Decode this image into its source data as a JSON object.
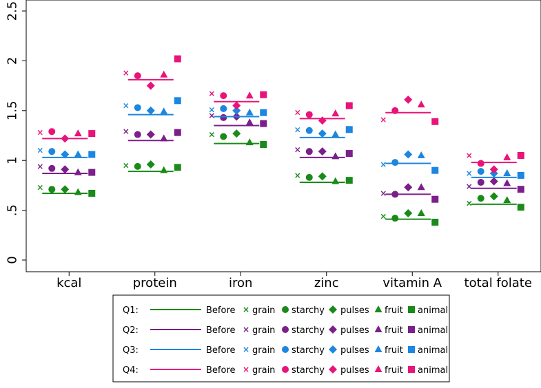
{
  "chart_data": {
    "type": "scatter",
    "title": "",
    "xlabel": "",
    "ylabel": "",
    "ylim": [
      0,
      2.5
    ],
    "yticks": [
      {
        "value": 0,
        "label": "0"
      },
      {
        "value": 0.5,
        "label": ".5"
      },
      {
        "value": 1,
        "label": "1"
      },
      {
        "value": 1.5,
        "label": "1.5"
      },
      {
        "value": 2,
        "label": "2"
      },
      {
        "value": 2.5,
        "label": "2.5"
      }
    ],
    "categories": [
      "kcal",
      "protein",
      "iron",
      "zinc",
      "vitamin A",
      "total folate"
    ],
    "marker_order": [
      "grain",
      "starchy",
      "pulses",
      "fruit",
      "animal"
    ],
    "quartiles": [
      {
        "name": "Q1",
        "color": "#1a8a1a",
        "before": [
          0.67,
          0.89,
          1.17,
          0.78,
          0.41,
          0.56
        ],
        "grain": [
          0.73,
          0.95,
          1.26,
          0.85,
          0.44,
          0.57
        ],
        "starchy": [
          0.71,
          0.94,
          1.24,
          0.83,
          0.42,
          0.62
        ],
        "pulses": [
          0.71,
          0.96,
          1.27,
          0.84,
          0.47,
          0.64
        ],
        "fruit": [
          0.68,
          0.9,
          1.18,
          0.79,
          0.47,
          0.6
        ],
        "animal": [
          0.67,
          0.93,
          1.16,
          0.8,
          0.38,
          0.53
        ]
      },
      {
        "name": "Q2",
        "color": "#7b1f8a",
        "before": [
          0.87,
          1.2,
          1.35,
          1.03,
          0.66,
          0.72
        ],
        "grain": [
          0.94,
          1.29,
          1.45,
          1.11,
          0.67,
          0.74
        ],
        "starchy": [
          0.92,
          1.26,
          1.43,
          1.09,
          0.66,
          0.78
        ],
        "pulses": [
          0.91,
          1.26,
          1.44,
          1.09,
          0.73,
          0.79
        ],
        "fruit": [
          0.88,
          1.22,
          1.38,
          1.04,
          0.73,
          0.77
        ],
        "animal": [
          0.88,
          1.28,
          1.37,
          1.07,
          0.61,
          0.71
        ]
      },
      {
        "name": "Q3",
        "color": "#1c86e0",
        "before": [
          1.03,
          1.46,
          1.44,
          1.23,
          0.97,
          0.83
        ],
        "grain": [
          1.1,
          1.55,
          1.51,
          1.31,
          0.96,
          0.87
        ],
        "starchy": [
          1.09,
          1.53,
          1.52,
          1.3,
          0.98,
          0.89
        ],
        "pulses": [
          1.06,
          1.5,
          1.5,
          1.27,
          1.06,
          0.87
        ],
        "fruit": [
          1.06,
          1.49,
          1.48,
          1.26,
          1.05,
          0.87
        ],
        "animal": [
          1.06,
          1.6,
          1.48,
          1.31,
          0.9,
          0.85
        ]
      },
      {
        "name": "Q4",
        "color": "#e8147a",
        "before": [
          1.22,
          1.81,
          1.59,
          1.42,
          1.48,
          0.98
        ],
        "grain": [
          1.28,
          1.88,
          1.67,
          1.48,
          1.41,
          1.05
        ],
        "starchy": [
          1.29,
          1.85,
          1.65,
          1.46,
          1.5,
          0.97
        ],
        "pulses": [
          1.22,
          1.75,
          1.55,
          1.4,
          1.61,
          0.91
        ],
        "fruit": [
          1.27,
          1.86,
          1.65,
          1.47,
          1.56,
          1.03
        ],
        "animal": [
          1.27,
          2.02,
          1.66,
          1.55,
          1.39,
          1.05
        ]
      }
    ],
    "legend": {
      "placement": "bottom",
      "before_label": "Before",
      "marker_labels": {
        "grain": "grain",
        "starchy": "starchy",
        "pulses": "pulses",
        "fruit": "fruit",
        "animal": "animal"
      },
      "rows": [
        "Q1:",
        "Q2:",
        "Q3:",
        "Q4:"
      ]
    }
  }
}
